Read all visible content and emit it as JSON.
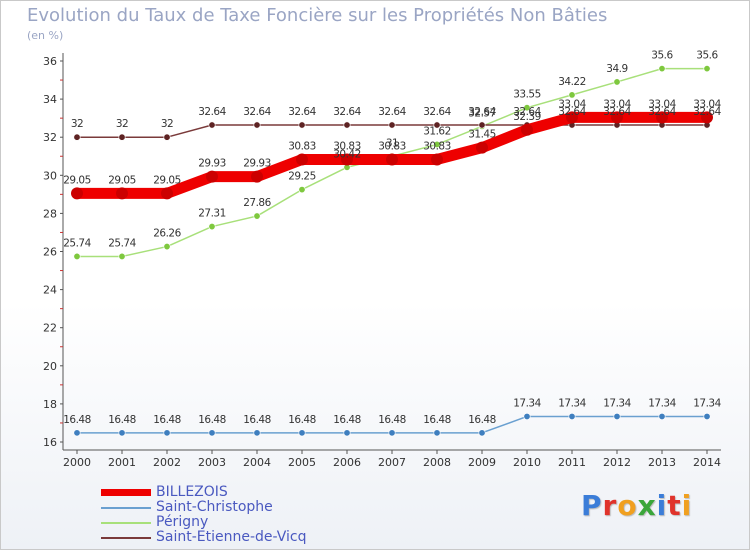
{
  "header": {
    "title": "Evolution du Taux de Taxe Foncière sur les Propriétés Non Bâties",
    "unit": "(en %)"
  },
  "chart_data": {
    "type": "line",
    "title": "Evolution du Taux de Taxe Foncière sur les Propriétés Non Bâties",
    "ylabel": "(en %)",
    "xlabel": "",
    "ylim": [
      16,
      36
    ],
    "yticks": [
      16,
      18,
      20,
      22,
      24,
      26,
      28,
      30,
      32,
      34,
      36
    ],
    "grid": false,
    "legend": "bottom-left",
    "categories": [
      "2000",
      "2001",
      "2002",
      "2003",
      "2004",
      "2005",
      "2006",
      "2007",
      "2008",
      "2009",
      "2010",
      "2011",
      "2012",
      "2013",
      "2014"
    ],
    "series": [
      {
        "name": "BILLEZOIS",
        "color": "#ee0000",
        "marker_color": "#cc0000",
        "values": [
          29.05,
          29.05,
          29.05,
          29.93,
          29.93,
          30.83,
          30.83,
          30.83,
          30.83,
          31.45,
          32.39,
          33.04,
          33.04,
          33.04,
          33.04
        ],
        "labels": [
          "29.05",
          "29.05",
          "29.05",
          "29.93",
          "29.93",
          "30.83",
          "30.83",
          "30.83",
          "30.83",
          "31.45",
          "32.39",
          "33.04",
          "33.04",
          "33.04",
          "33.04"
        ]
      },
      {
        "name": "Saint-Christophe",
        "color": "#6aa0d0",
        "marker_color": "#3f7fbf",
        "values": [
          16.48,
          16.48,
          16.48,
          16.48,
          16.48,
          16.48,
          16.48,
          16.48,
          16.48,
          16.48,
          17.34,
          17.34,
          17.34,
          17.34,
          17.34
        ],
        "labels": [
          "16.48",
          "16.48",
          "16.48",
          "16.48",
          "16.48",
          "16.48",
          "16.48",
          "16.48",
          "16.48",
          "16.48",
          "17.34",
          "17.34",
          "17.34",
          "17.34",
          "17.34"
        ]
      },
      {
        "name": "Périgny",
        "color": "#a8e07a",
        "marker_color": "#7ec83e",
        "values": [
          25.74,
          25.74,
          26.26,
          27.31,
          27.86,
          29.25,
          30.42,
          31.0,
          31.62,
          32.57,
          33.55,
          34.22,
          34.9,
          35.6,
          35.6
        ],
        "labels": [
          "25.74",
          "25.74",
          "26.26",
          "27.31",
          "27.86",
          "29.25",
          "30.42",
          "31",
          "31.62",
          "32.57",
          "33.55",
          "34.22",
          "34.9",
          "35.6",
          "35.6"
        ]
      },
      {
        "name": "Saint-Etienne-de-Vicq",
        "color": "#7a3a3a",
        "marker_color": "#5e2323",
        "values": [
          32,
          32,
          32,
          32.64,
          32.64,
          32.64,
          32.64,
          32.64,
          32.64,
          32.64,
          32.64,
          32.64,
          32.64,
          32.64,
          32.64
        ],
        "labels": [
          "32",
          "32",
          "32",
          "32.64",
          "32.64",
          "32.64",
          "32.64",
          "32.64",
          "32.64",
          "32.64",
          "32.64",
          "32.64",
          "32.64",
          "32.64",
          "32.64"
        ]
      }
    ]
  },
  "legend": {
    "items": [
      {
        "label": "BILLEZOIS",
        "color": "#ee0000"
      },
      {
        "label": "Saint-Christophe",
        "color": "#6aa0d0"
      },
      {
        "label": "Périgny",
        "color": "#a8e07a"
      },
      {
        "label": "Saint-Etienne-de-Vicq",
        "color": "#7a3a3a"
      }
    ]
  },
  "logo": {
    "text": "Proxiti",
    "colors": [
      "#3b7dd8",
      "#e0332b",
      "#f0a020",
      "#3aa63a",
      "#3b7dd8",
      "#e0332b",
      "#f0a020"
    ]
  }
}
